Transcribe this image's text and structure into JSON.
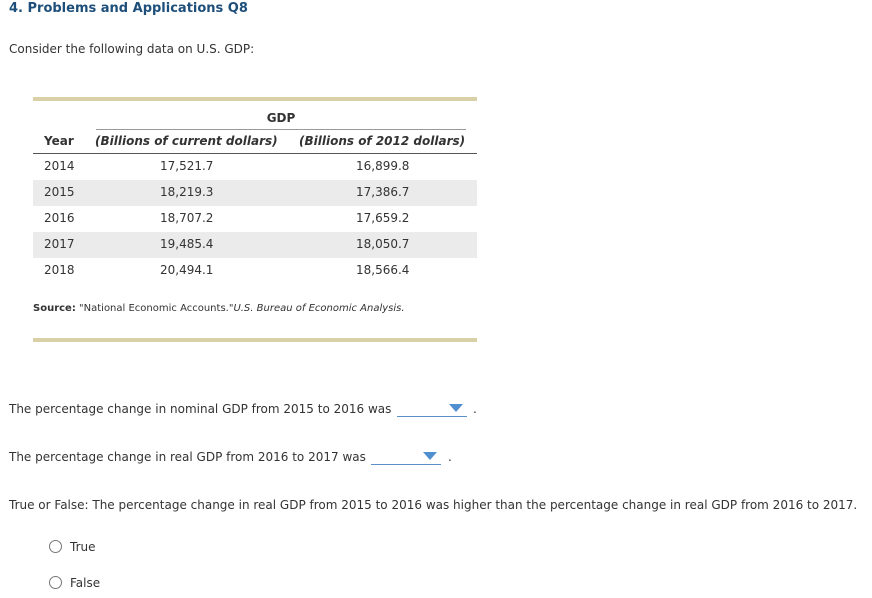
{
  "header": {
    "title": "4. Problems and Applications Q8"
  },
  "intro": "Consider the following data on U.S. GDP:",
  "table": {
    "group_header": "GDP",
    "columns": [
      "Year",
      "(Billions of current dollars)",
      "(Billions of 2012 dollars)"
    ],
    "rows": [
      [
        "2014",
        "17,521.7",
        "16,899.8"
      ],
      [
        "2015",
        "18,219.3",
        "17,386.7"
      ],
      [
        "2016",
        "18,707.2",
        "17,659.2"
      ],
      [
        "2017",
        "19,485.4",
        "18,050.7"
      ],
      [
        "2018",
        "20,494.1",
        "18,566.4"
      ]
    ]
  },
  "source": {
    "label": "Source:",
    "text": "\"National Economic Accounts.\"",
    "publication": "U.S. Bureau of Economic Analysis."
  },
  "questions": [
    {
      "text": "The percentage change in nominal GDP from 2015 to 2016 was",
      "end": "."
    },
    {
      "text": "The percentage change in real GDP from 2016 to 2017 was",
      "end": "."
    }
  ],
  "true_false": {
    "prompt": "True or False: The percentage change in real GDP from 2015 to 2016 was higher than the percentage change in real GDP from 2016 to 2017.",
    "options": [
      "True",
      "False"
    ]
  }
}
